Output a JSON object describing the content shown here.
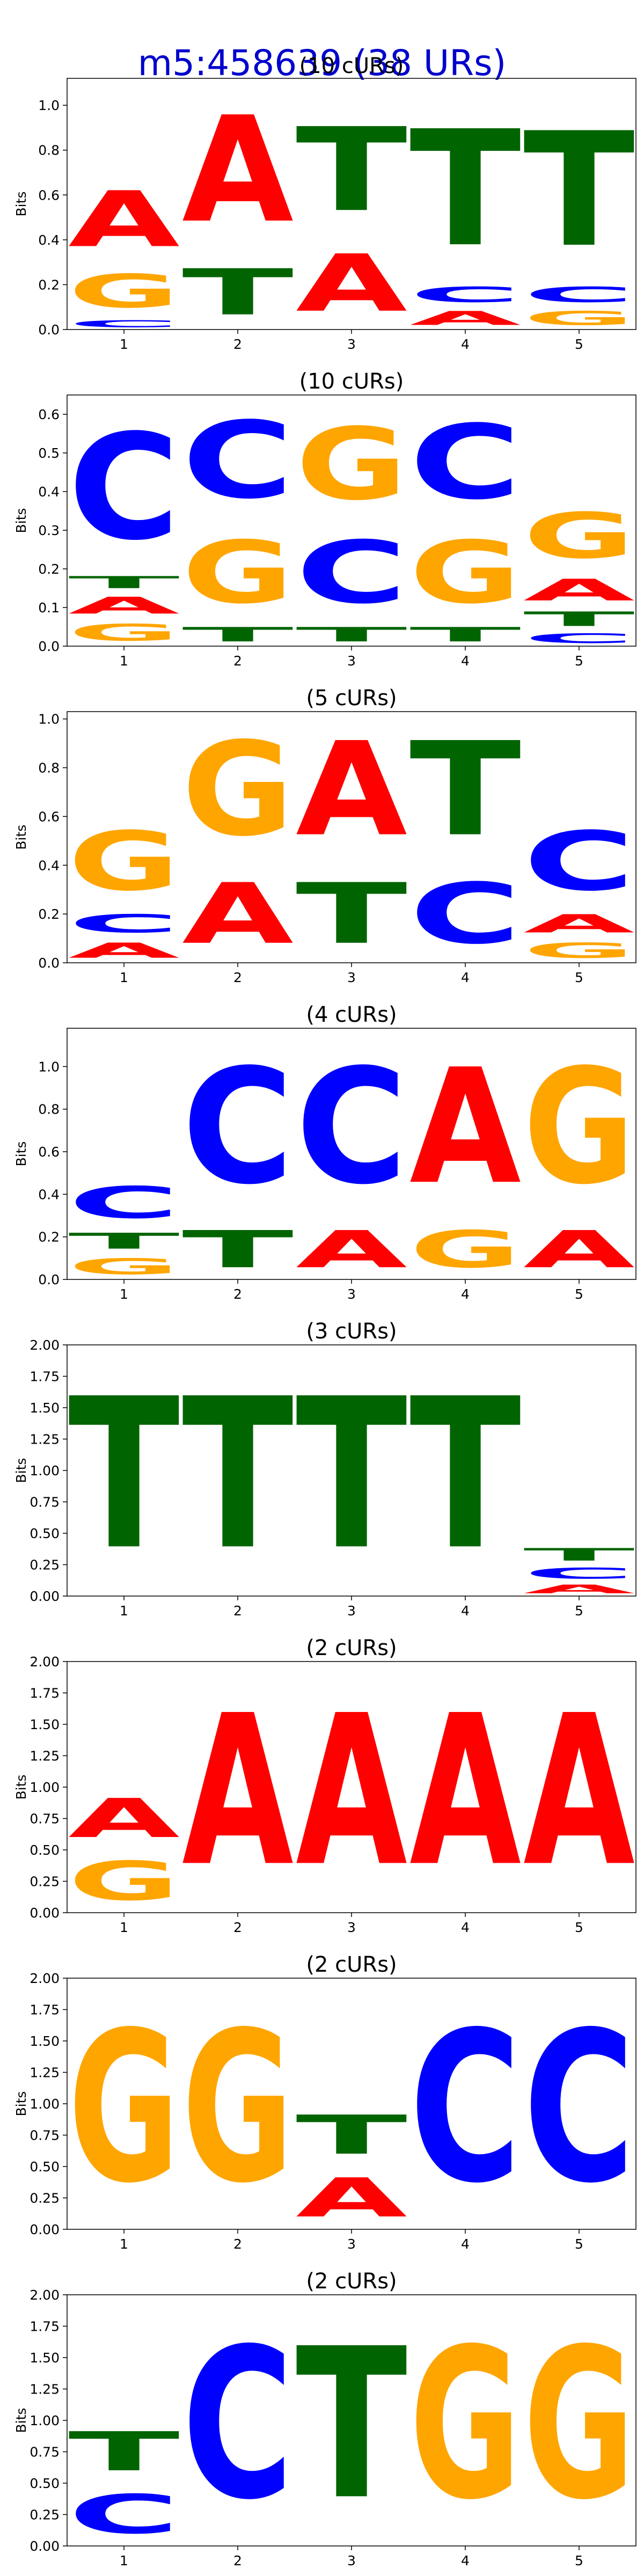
{
  "main_title": "m5:458639 (38 URs)",
  "colors": {
    "A": "#ff0000",
    "C": "#0000ff",
    "G": "#ffa500",
    "T": "#006400"
  },
  "chart_data": [
    {
      "type": "sequence-logo",
      "title": "(10 cURs)",
      "ylabel": "Bits",
      "ylim": [
        0,
        1.12
      ],
      "yticks": [
        "0.0",
        "0.2",
        "0.4",
        "0.6",
        "0.8",
        "1.0"
      ],
      "positions": [
        "1",
        "2",
        "3",
        "4",
        "5"
      ],
      "stacks": [
        [
          {
            "base": "C",
            "bits": 0.05
          },
          {
            "base": "G",
            "bits": 0.24
          },
          {
            "base": "A",
            "bits": 0.4
          }
        ],
        [
          {
            "base": "T",
            "bits": 0.33
          },
          {
            "base": "A",
            "bits": 0.76
          }
        ],
        [
          {
            "base": "A",
            "bits": 0.41
          },
          {
            "base": "T",
            "bits": 0.6
          }
        ],
        [
          {
            "base": "A",
            "bits": 0.1
          },
          {
            "base": "C",
            "bits": 0.11
          },
          {
            "base": "T",
            "bits": 0.83
          }
        ],
        [
          {
            "base": "G",
            "bits": 0.1
          },
          {
            "base": "C",
            "bits": 0.11
          },
          {
            "base": "T",
            "bits": 0.82
          }
        ]
      ]
    },
    {
      "type": "sequence-logo",
      "title": "(10 cURs)",
      "ylabel": "Bits",
      "ylim": [
        0,
        0.65
      ],
      "yticks": [
        "0.0",
        "0.1",
        "0.2",
        "0.3",
        "0.4",
        "0.5",
        "0.6"
      ],
      "positions": [
        "1",
        "2",
        "3",
        "4",
        "5"
      ],
      "stacks": [
        [
          {
            "base": "G",
            "bits": 0.07
          },
          {
            "base": "A",
            "bits": 0.07
          },
          {
            "base": "T",
            "bits": 0.05
          },
          {
            "base": "C",
            "bits": 0.44
          }
        ],
        [
          {
            "base": "T",
            "bits": 0.06
          },
          {
            "base": "G",
            "bits": 0.26
          },
          {
            "base": "C",
            "bits": 0.32
          }
        ],
        [
          {
            "base": "T",
            "bits": 0.06
          },
          {
            "base": "C",
            "bits": 0.26
          },
          {
            "base": "G",
            "bits": 0.3
          }
        ],
        [
          {
            "base": "T",
            "bits": 0.06
          },
          {
            "base": "G",
            "bits": 0.26
          },
          {
            "base": "C",
            "bits": 0.31
          }
        ],
        [
          {
            "base": "C",
            "bits": 0.04
          },
          {
            "base": "T",
            "bits": 0.06
          },
          {
            "base": "A",
            "bits": 0.09
          },
          {
            "base": "G",
            "bits": 0.19
          }
        ]
      ]
    },
    {
      "type": "sequence-logo",
      "title": "(5 cURs)",
      "ylabel": "Bits",
      "ylim": [
        0,
        1.03
      ],
      "yticks": [
        "0.0",
        "0.2",
        "0.4",
        "0.6",
        "0.8",
        "1.0"
      ],
      "positions": [
        "1",
        "2",
        "3",
        "4",
        "5"
      ],
      "stacks": [
        [
          {
            "base": "A",
            "bits": 0.1
          },
          {
            "base": "C",
            "bits": 0.12
          },
          {
            "base": "G",
            "bits": 0.39
          }
        ],
        [
          {
            "base": "A",
            "bits": 0.4
          },
          {
            "base": "G",
            "bits": 0.62
          }
        ],
        [
          {
            "base": "T",
            "bits": 0.4
          },
          {
            "base": "A",
            "bits": 0.62
          }
        ],
        [
          {
            "base": "C",
            "bits": 0.4
          },
          {
            "base": "T",
            "bits": 0.62
          }
        ],
        [
          {
            "base": "G",
            "bits": 0.1
          },
          {
            "base": "A",
            "bits": 0.12
          },
          {
            "base": "C",
            "bits": 0.39
          }
        ]
      ]
    },
    {
      "type": "sequence-logo",
      "title": "(4 cURs)",
      "ylabel": "Bits",
      "ylim": [
        0,
        1.18
      ],
      "yticks": [
        "0.0",
        "0.2",
        "0.4",
        "0.6",
        "0.8",
        "1.0"
      ],
      "positions": [
        "1",
        "2",
        "3",
        "4",
        "5"
      ],
      "stacks": [
        [
          {
            "base": "G",
            "bits": 0.12
          },
          {
            "base": "T",
            "bits": 0.12
          },
          {
            "base": "C",
            "bits": 0.24
          }
        ],
        [
          {
            "base": "T",
            "bits": 0.28
          },
          {
            "base": "C",
            "bits": 0.87
          }
        ],
        [
          {
            "base": "A",
            "bits": 0.28
          },
          {
            "base": "C",
            "bits": 0.87
          }
        ],
        [
          {
            "base": "G",
            "bits": 0.28
          },
          {
            "base": "A",
            "bits": 0.87
          }
        ],
        [
          {
            "base": "A",
            "bits": 0.28
          },
          {
            "base": "G",
            "bits": 0.87
          }
        ]
      ]
    },
    {
      "type": "sequence-logo",
      "title": "(3 cURs)",
      "ylabel": "Bits",
      "ylim": [
        0,
        2.0
      ],
      "yticks": [
        "0.00",
        "0.25",
        "0.50",
        "0.75",
        "1.00",
        "1.25",
        "1.50",
        "1.75",
        "2.00"
      ],
      "positions": [
        "1",
        "2",
        "3",
        "4",
        "5"
      ],
      "stacks": [
        [
          {
            "base": "T",
            "bits": 1.93
          }
        ],
        [
          {
            "base": "T",
            "bits": 1.93
          }
        ],
        [
          {
            "base": "T",
            "bits": 1.93
          }
        ],
        [
          {
            "base": "T",
            "bits": 1.93
          }
        ],
        [
          {
            "base": "A",
            "bits": 0.11
          },
          {
            "base": "C",
            "bits": 0.14
          },
          {
            "base": "T",
            "bits": 0.16
          }
        ]
      ]
    },
    {
      "type": "sequence-logo",
      "title": "(2 cURs)",
      "ylabel": "Bits",
      "ylim": [
        0,
        2.0
      ],
      "yticks": [
        "0.00",
        "0.25",
        "0.50",
        "0.75",
        "1.00",
        "1.25",
        "1.50",
        "1.75",
        "2.00"
      ],
      "positions": [
        "1",
        "2",
        "3",
        "4",
        "5"
      ],
      "stacks": [
        [
          {
            "base": "G",
            "bits": 0.5
          },
          {
            "base": "A",
            "bits": 0.5
          }
        ],
        [
          {
            "base": "A",
            "bits": 1.93
          }
        ],
        [
          {
            "base": "A",
            "bits": 1.93
          }
        ],
        [
          {
            "base": "A",
            "bits": 1.93
          }
        ],
        [
          {
            "base": "A",
            "bits": 1.93
          }
        ]
      ]
    },
    {
      "type": "sequence-logo",
      "title": "(2 cURs)",
      "ylabel": "Bits",
      "ylim": [
        0,
        2.0
      ],
      "yticks": [
        "0.00",
        "0.25",
        "0.50",
        "0.75",
        "1.00",
        "1.25",
        "1.50",
        "1.75",
        "2.00"
      ],
      "positions": [
        "1",
        "2",
        "3",
        "4",
        "5"
      ],
      "stacks": [
        [
          {
            "base": "G",
            "bits": 1.93
          }
        ],
        [
          {
            "base": "G",
            "bits": 1.93
          }
        ],
        [
          {
            "base": "A",
            "bits": 0.5
          },
          {
            "base": "T",
            "bits": 0.5
          }
        ],
        [
          {
            "base": "C",
            "bits": 1.93
          }
        ],
        [
          {
            "base": "C",
            "bits": 1.93
          }
        ]
      ]
    },
    {
      "type": "sequence-logo",
      "title": "(2 cURs)",
      "ylabel": "Bits",
      "ylim": [
        0,
        2.0
      ],
      "yticks": [
        "0.00",
        "0.25",
        "0.50",
        "0.75",
        "1.00",
        "1.25",
        "1.50",
        "1.75",
        "2.00"
      ],
      "positions": [
        "1",
        "2",
        "3",
        "4",
        "5"
      ],
      "stacks": [
        [
          {
            "base": "C",
            "bits": 0.5
          },
          {
            "base": "T",
            "bits": 0.5
          }
        ],
        [
          {
            "base": "C",
            "bits": 1.93
          }
        ],
        [
          {
            "base": "T",
            "bits": 1.93
          }
        ],
        [
          {
            "base": "G",
            "bits": 1.93
          }
        ],
        [
          {
            "base": "G",
            "bits": 1.93
          }
        ]
      ]
    }
  ]
}
